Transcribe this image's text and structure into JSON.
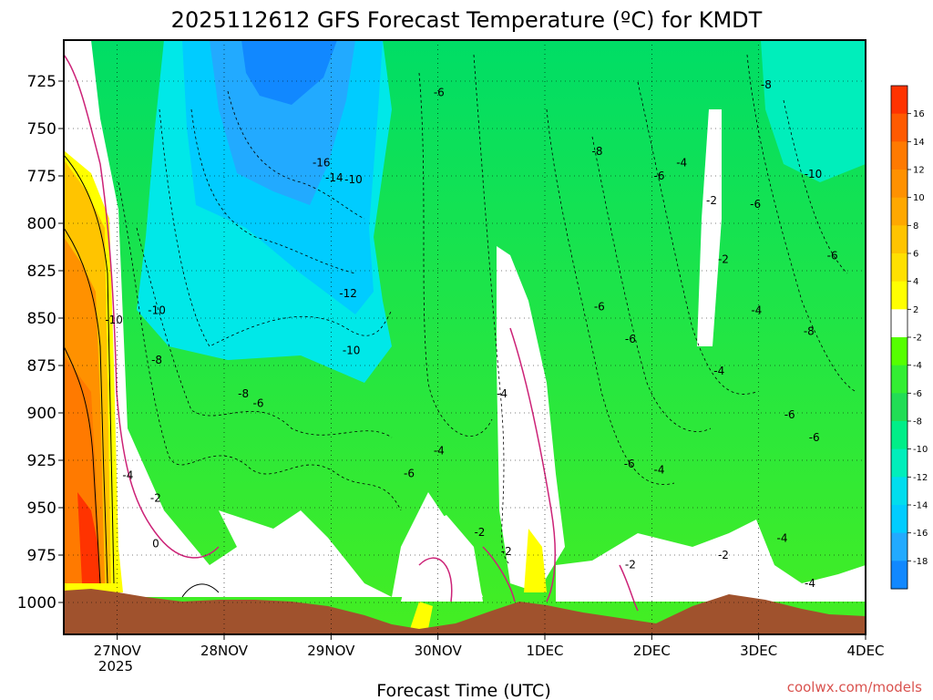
{
  "chart_data": {
    "type": "filled-contour time-height section",
    "title": "2025112612 GFS Forecast Temperature (ºC) for KMDT",
    "xlabel": "Forecast Time (UTC)",
    "ylabel": "",
    "y_axis": {
      "unit": "hPa",
      "inverted": true,
      "ticks": [
        725,
        750,
        775,
        800,
        825,
        850,
        875,
        900,
        925,
        950,
        975,
        1000
      ],
      "range": [
        710,
        1013
      ]
    },
    "x_axis": {
      "ticks": [
        "27NOV",
        "28NOV",
        "29NOV",
        "30NOV",
        "1DEC",
        "2DEC",
        "3DEC",
        "4DEC"
      ],
      "sublabel": "2025",
      "range": [
        "2025-11-26T12",
        "2025-12-04T00"
      ]
    },
    "grid": true,
    "colorbar": {
      "position": "right",
      "labels": [
        16,
        14,
        12,
        10,
        8,
        6,
        4,
        2,
        -2,
        -4,
        -6,
        -8,
        -10,
        -12,
        -14,
        -16,
        -18
      ],
      "colors": [
        "#ff3300",
        "#ff5a00",
        "#ff7a00",
        "#ff9100",
        "#ffa800",
        "#ffc400",
        "#ffe000",
        "#ffff00",
        "#ffffff",
        "#55ff00",
        "#33ee33",
        "#22dd55",
        "#00ee88",
        "#00eebb",
        "#00ddee",
        "#00ccff",
        "#22aaff",
        "#1188ff"
      ]
    },
    "contour_labels": [
      {
        "text": "-16",
        "day": 2.41,
        "p": 768
      },
      {
        "text": "-14",
        "day": 2.53,
        "p": 776
      },
      {
        "text": "-10",
        "day": 2.71,
        "p": 777
      },
      {
        "text": "-12",
        "day": 2.66,
        "p": 837
      },
      {
        "text": "-10",
        "day": 0.47,
        "p": 851
      },
      {
        "text": "-10",
        "day": 0.87,
        "p": 846
      },
      {
        "text": "-10",
        "day": 2.69,
        "p": 867
      },
      {
        "text": "-8",
        "day": 0.87,
        "p": 872
      },
      {
        "text": "-8",
        "day": 1.68,
        "p": 890
      },
      {
        "text": "-6",
        "day": 1.82,
        "p": 895
      },
      {
        "text": "-4",
        "day": 0.6,
        "p": 933
      },
      {
        "text": "-2",
        "day": 0.86,
        "p": 945
      },
      {
        "text": "0",
        "day": 0.86,
        "p": 969
      },
      {
        "text": "-6",
        "day": 3.51,
        "p": 731
      },
      {
        "text": "-6",
        "day": 3.23,
        "p": 932
      },
      {
        "text": "-4",
        "day": 3.51,
        "p": 920
      },
      {
        "text": "-4",
        "day": 4.1,
        "p": 890
      },
      {
        "text": "-2",
        "day": 3.89,
        "p": 963
      },
      {
        "text": "-2",
        "day": 4.14,
        "p": 973
      },
      {
        "text": "-6",
        "day": 5.01,
        "p": 844
      },
      {
        "text": "-6",
        "day": 5.3,
        "p": 861
      },
      {
        "text": "-8",
        "day": 4.99,
        "p": 762
      },
      {
        "text": "-6",
        "day": 5.57,
        "p": 775
      },
      {
        "text": "-4",
        "day": 5.78,
        "p": 768
      },
      {
        "text": "-6",
        "day": 5.29,
        "p": 927
      },
      {
        "text": "-4",
        "day": 5.57,
        "p": 930
      },
      {
        "text": "-2",
        "day": 5.3,
        "p": 980
      },
      {
        "text": "-2",
        "day": 6.06,
        "p": 788
      },
      {
        "text": "-2",
        "day": 6.17,
        "p": 819
      },
      {
        "text": "-4",
        "day": 6.48,
        "p": 846
      },
      {
        "text": "-4",
        "day": 6.13,
        "p": 878
      },
      {
        "text": "-6",
        "day": 6.47,
        "p": 790
      },
      {
        "text": "-2",
        "day": 6.17,
        "p": 975
      },
      {
        "text": "-4",
        "day": 6.72,
        "p": 966
      },
      {
        "text": "-6",
        "day": 6.79,
        "p": 901
      },
      {
        "text": "-8",
        "day": 6.57,
        "p": 727
      },
      {
        "text": "-10",
        "day": 7.01,
        "p": 774
      },
      {
        "text": "-8",
        "day": 6.97,
        "p": 857
      },
      {
        "text": "-6",
        "day": 7.19,
        "p": 817
      },
      {
        "text": "-6",
        "day": 7.02,
        "p": 913
      },
      {
        "text": "-4",
        "day": 6.98,
        "p": 990
      }
    ]
  },
  "credit": "coolwx.com/models"
}
